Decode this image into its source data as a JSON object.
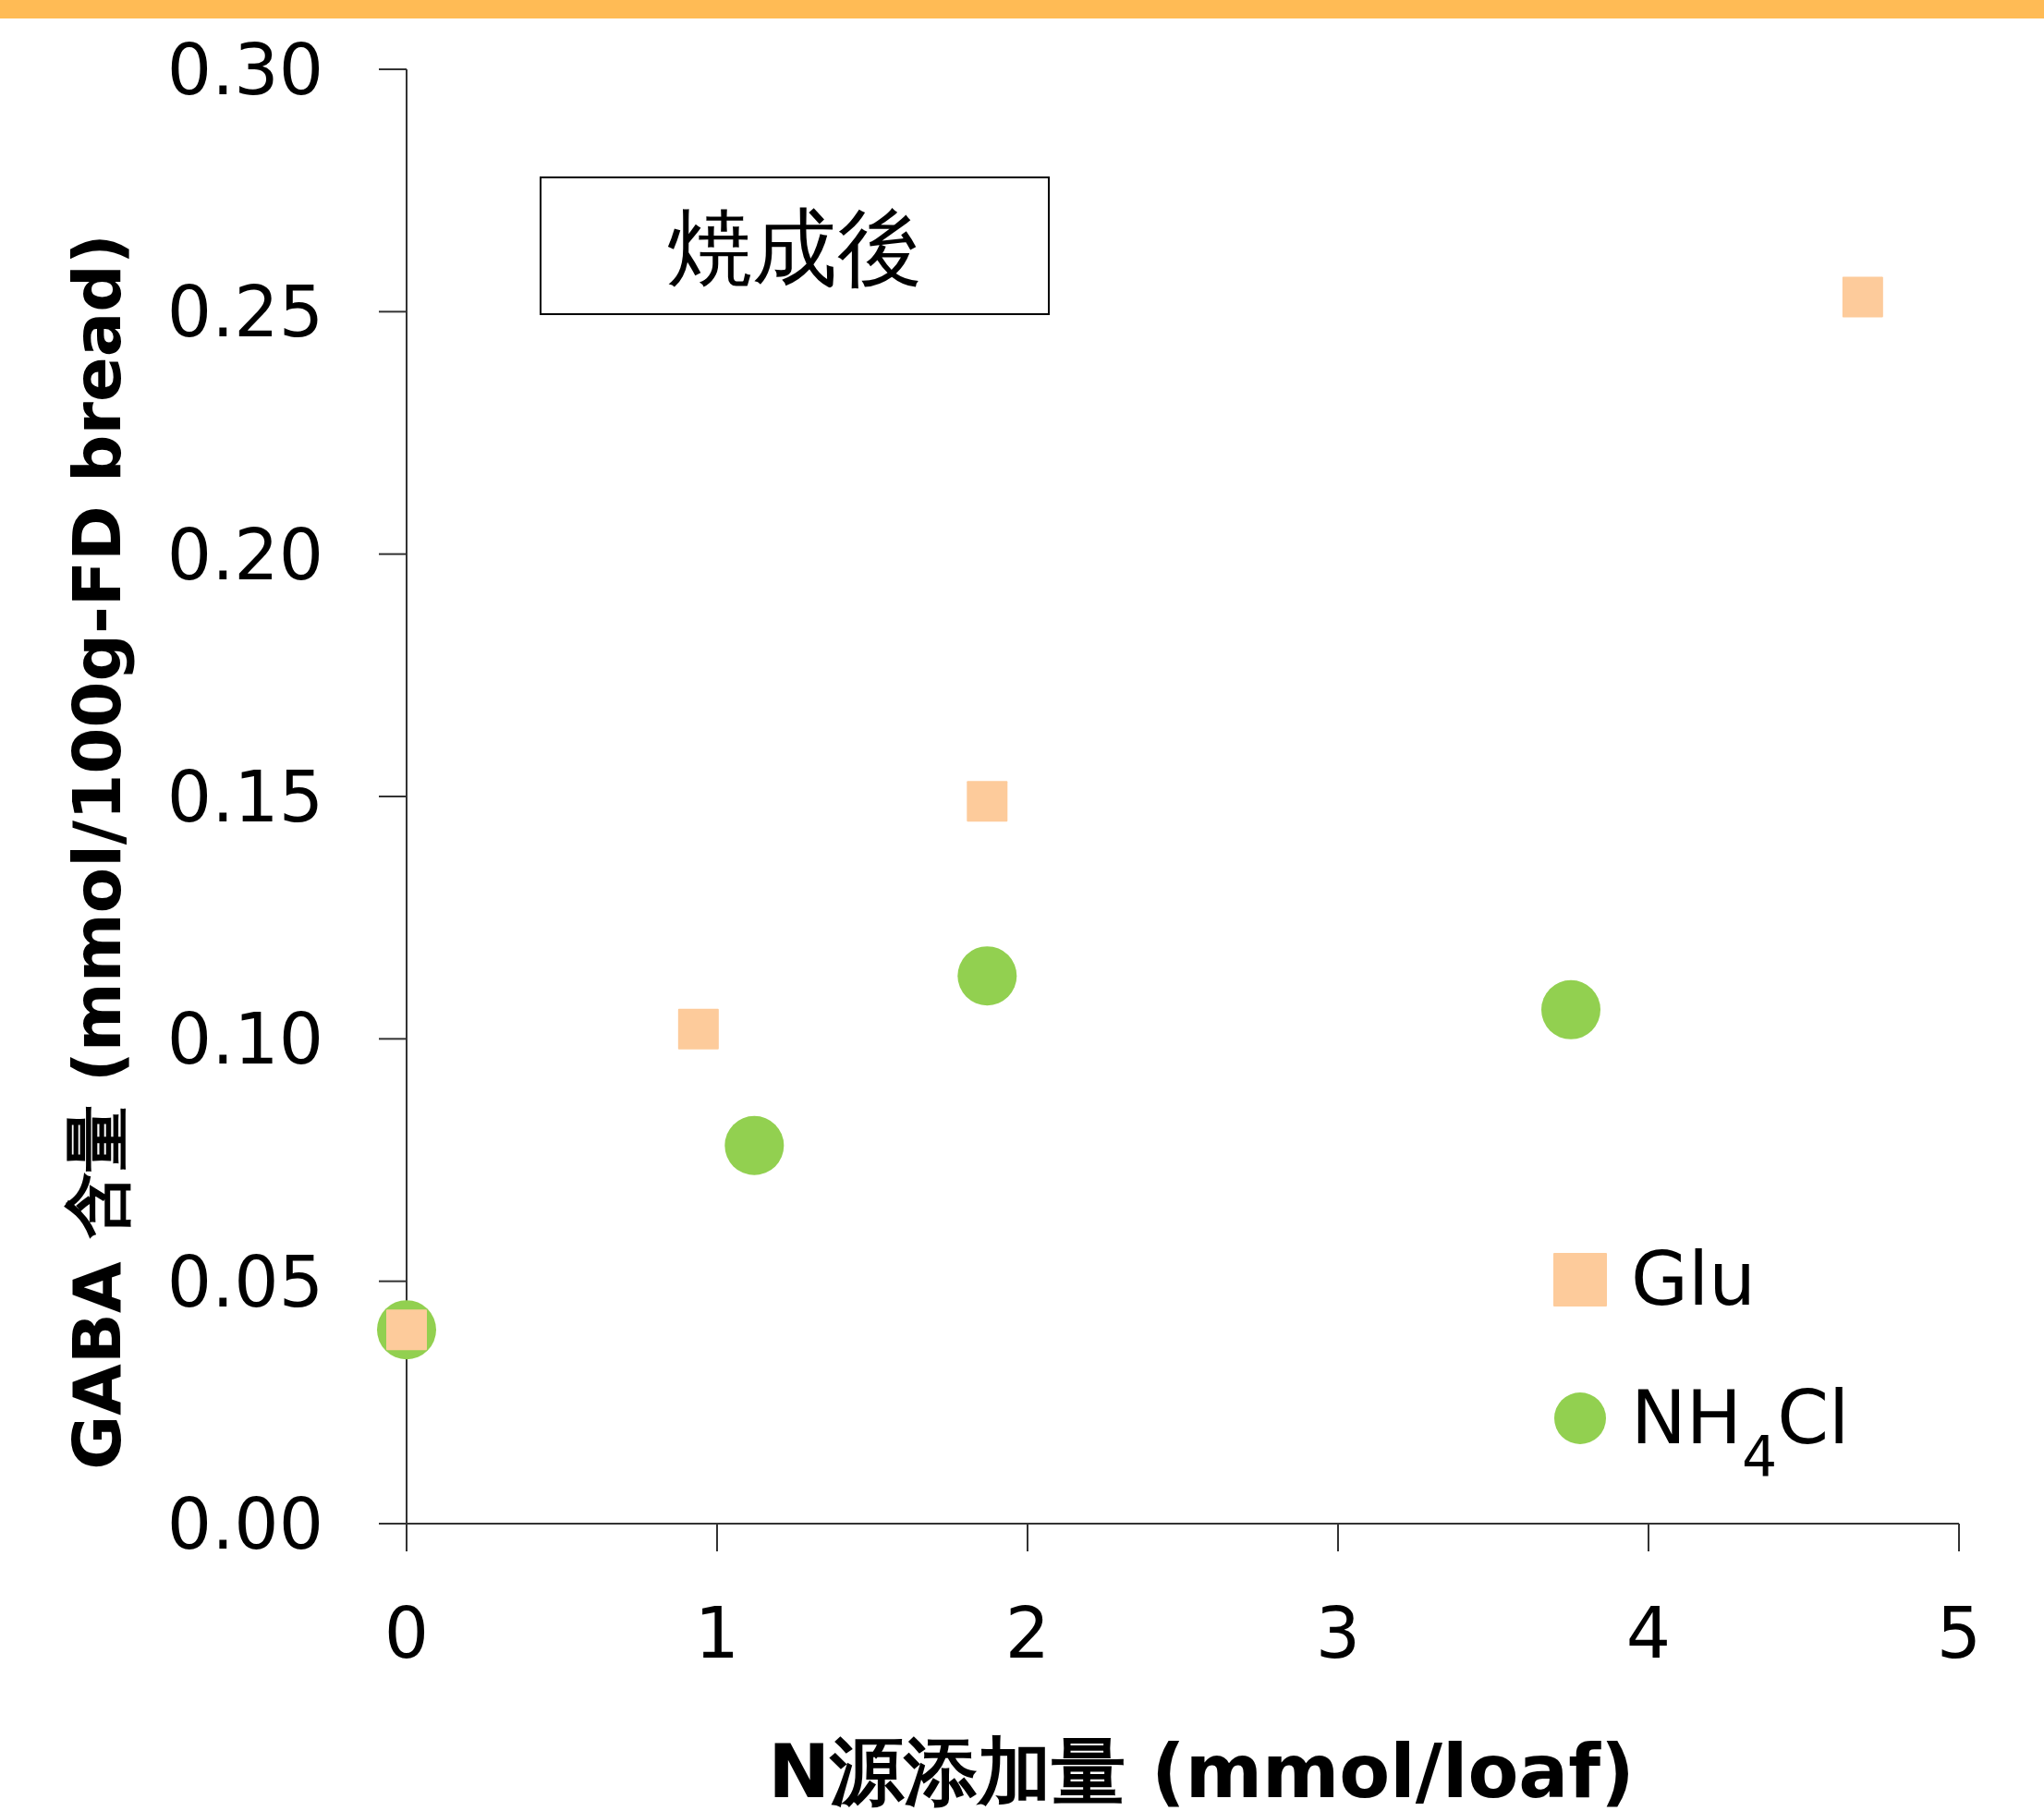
{
  "chart_data": {
    "type": "scatter",
    "xlabel": "N源添加量 (mmol/loaf)",
    "ylabel": "GABA 含量 (mmol/100g-FD bread)",
    "annotations": [
      "焼成後"
    ],
    "xlim": [
      0,
      5
    ],
    "ylim": [
      0,
      0.3
    ],
    "xticks": [
      0,
      1,
      2,
      3,
      4,
      5
    ],
    "yticks": [
      {
        "value": 0,
        "label": "0.00"
      },
      {
        "value": 0.05,
        "label": "0.05"
      },
      {
        "value": 0.1,
        "label": "0.10"
      },
      {
        "value": 0.15,
        "label": "0.15"
      },
      {
        "value": 0.2,
        "label": "0.20"
      },
      {
        "value": 0.25,
        "label": "0.25"
      },
      {
        "value": 0.3,
        "label": "0.30"
      }
    ],
    "grid": false,
    "legend": "bottom right",
    "series": [
      {
        "name": "Glu",
        "color": "#fdcb9b",
        "marker": "square",
        "x": [
          0,
          0.94,
          1.87,
          4.69
        ],
        "values": [
          0.04,
          0.102,
          0.149,
          0.253
        ]
      },
      {
        "name": "NH$_{4}$Cl",
        "color": "#92d050",
        "marker": "circle",
        "x": [
          0,
          1.12,
          1.87,
          3.75
        ],
        "values": [
          0.04,
          0.078,
          0.113,
          0.106
        ]
      }
    ]
  }
}
